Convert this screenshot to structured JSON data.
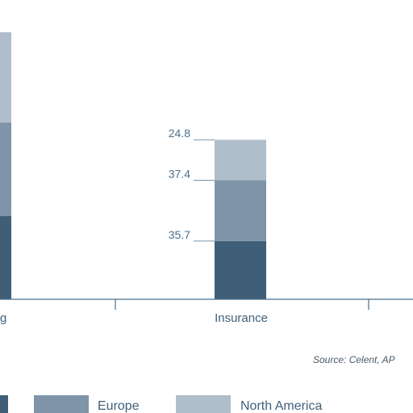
{
  "chart_data": {
    "type": "bar",
    "stacked": true,
    "categories": [
      "ng",
      "Insurance"
    ],
    "series": [
      {
        "name": "",
        "color": "#3f5f78",
        "values": [
          null,
          35.7
        ]
      },
      {
        "name": "Europe",
        "color": "#7f94a8",
        "values": [
          null,
          37.4
        ]
      },
      {
        "name": "North America",
        "color": "#b0bdcb",
        "values": [
          null,
          24.8
        ]
      }
    ],
    "data_labels": [
      "35.7",
      "37.4",
      "24.8"
    ],
    "source": "Source: Celent, AP",
    "legend": {
      "position": "bottom",
      "entries": [
        "Europe",
        "North America"
      ]
    },
    "grid": false
  }
}
